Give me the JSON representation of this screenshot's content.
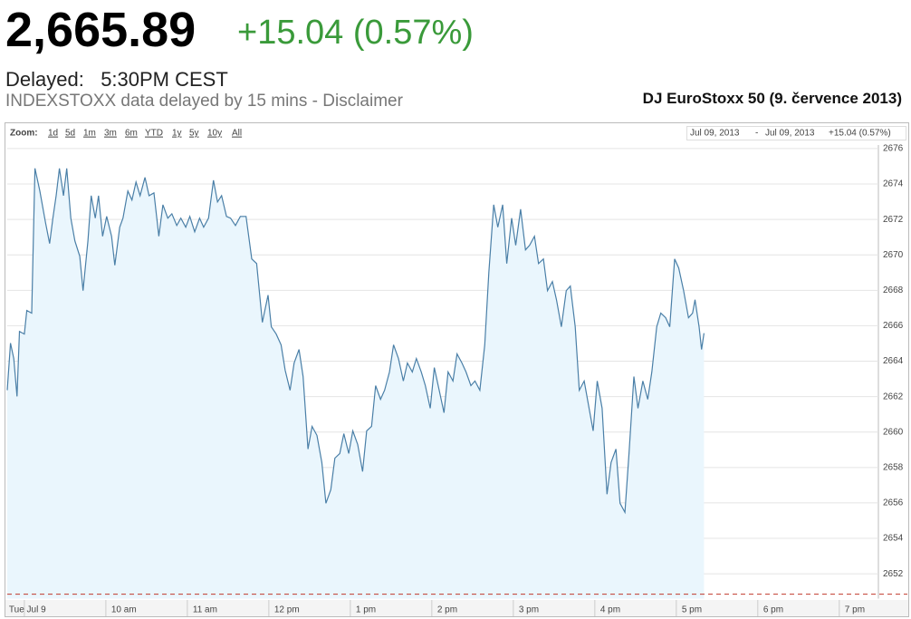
{
  "header": {
    "price": "2,665.89",
    "change": "+15.04 (0.57%)",
    "delayed_label": "Delayed:",
    "delayed_time": "5:30PM CEST",
    "disclaimer": "INDEXSTOXX data delayed by 15 mins - Disclaimer"
  },
  "zoom": {
    "label": "Zoom:",
    "options": [
      "1d",
      "5d",
      "1m",
      "3m",
      "6m",
      "YTD",
      "1y",
      "5y",
      "10y",
      "All"
    ]
  },
  "range": {
    "start": "Jul 09, 2013",
    "separator": "-",
    "end": "Jul 09, 2013",
    "change": "+15.04 (0.57%)"
  },
  "chart_data": {
    "type": "line",
    "title": "DJ EuroStoxx 50 (9. července 2013)",
    "color": "#4a7fa7",
    "fill": "#eaf6fd",
    "grid": true,
    "reference_line": 2650.85,
    "reference_color": "#c0392b",
    "xlim": [
      8.79,
      19.48
    ],
    "ylim": [
      2650.6,
      2676.2
    ],
    "xticks": [
      {
        "value": 9,
        "label": "Tue Jul 9"
      },
      {
        "value": 10,
        "label": "10 am"
      },
      {
        "value": 11,
        "label": "11 am"
      },
      {
        "value": 12,
        "label": "12 pm"
      },
      {
        "value": 13,
        "label": "1 pm"
      },
      {
        "value": 14,
        "label": "2 pm"
      },
      {
        "value": 15,
        "label": "3 pm"
      },
      {
        "value": 16,
        "label": "4 pm"
      },
      {
        "value": 17,
        "label": "5 pm"
      },
      {
        "value": 18,
        "label": "6 pm"
      },
      {
        "value": 19,
        "label": "7 pm"
      }
    ],
    "yticks": [
      2652,
      2654,
      2656,
      2658,
      2660,
      2662,
      2664,
      2666,
      2668,
      2670,
      2672,
      2674,
      2676
    ],
    "x": [
      8.79,
      8.83,
      8.87,
      8.91,
      8.94,
      9.0,
      9.03,
      9.09,
      9.13,
      9.19,
      9.26,
      9.31,
      9.35,
      9.39,
      9.43,
      9.48,
      9.52,
      9.57,
      9.62,
      9.68,
      9.72,
      9.78,
      9.82,
      9.87,
      9.91,
      9.96,
      10.01,
      10.07,
      10.11,
      10.17,
      10.21,
      10.27,
      10.32,
      10.37,
      10.42,
      10.48,
      10.53,
      10.59,
      10.65,
      10.7,
      10.76,
      10.81,
      10.87,
      10.92,
      10.98,
      11.03,
      11.09,
      11.15,
      11.2,
      11.26,
      11.32,
      11.37,
      11.42,
      11.48,
      11.53,
      11.59,
      11.65,
      11.72,
      11.79,
      11.85,
      11.92,
      11.99,
      12.03,
      12.09,
      12.15,
      12.2,
      12.26,
      12.31,
      12.37,
      12.42,
      12.48,
      12.53,
      12.59,
      12.65,
      12.7,
      12.76,
      12.81,
      12.87,
      12.92,
      12.98,
      13.03,
      13.09,
      13.15,
      13.2,
      13.26,
      13.31,
      13.37,
      13.42,
      13.48,
      13.53,
      13.59,
      13.65,
      13.7,
      13.76,
      13.81,
      13.87,
      13.92,
      13.98,
      14.03,
      14.09,
      14.15,
      14.2,
      14.26,
      14.31,
      14.37,
      14.42,
      14.48,
      14.53,
      14.59,
      14.65,
      14.7,
      14.76,
      14.81,
      14.87,
      14.92,
      14.98,
      15.03,
      15.09,
      15.15,
      15.2,
      15.26,
      15.31,
      15.37,
      15.42,
      15.48,
      15.53,
      15.59,
      15.65,
      15.7,
      15.76,
      15.81,
      15.87,
      15.92,
      15.98,
      16.03,
      16.09,
      16.15,
      16.2,
      16.26,
      16.31,
      16.37,
      16.42,
      16.48,
      16.53,
      16.59,
      16.65,
      16.7,
      16.76,
      16.81,
      16.87,
      16.92,
      16.98,
      17.03,
      17.09,
      17.15,
      17.2,
      17.23,
      17.28,
      17.31,
      17.34
    ],
    "values": [
      2662.36,
      2665.02,
      2664.15,
      2662.01,
      2665.68,
      2665.53,
      2666.86,
      2666.71,
      2674.88,
      2673.6,
      2671.81,
      2670.64,
      2672.07,
      2673.34,
      2674.88,
      2673.34,
      2674.88,
      2672.07,
      2670.79,
      2669.92,
      2667.98,
      2670.79,
      2673.34,
      2672.07,
      2673.34,
      2671.05,
      2672.17,
      2671.05,
      2669.41,
      2671.56,
      2672.07,
      2673.6,
      2673.09,
      2674.11,
      2673.34,
      2674.37,
      2673.34,
      2673.5,
      2671.05,
      2672.83,
      2672.07,
      2672.32,
      2671.66,
      2672.07,
      2671.56,
      2672.17,
      2671.3,
      2672.07,
      2671.56,
      2672.07,
      2674.21,
      2672.99,
      2673.34,
      2672.17,
      2672.07,
      2671.66,
      2672.17,
      2672.17,
      2669.77,
      2669.51,
      2666.19,
      2667.73,
      2665.94,
      2665.53,
      2664.92,
      2663.49,
      2662.36,
      2663.9,
      2664.66,
      2663.13,
      2659.04,
      2660.32,
      2659.81,
      2658.28,
      2655.98,
      2656.75,
      2658.53,
      2658.79,
      2659.91,
      2658.79,
      2660.07,
      2659.3,
      2657.77,
      2660.07,
      2660.32,
      2662.62,
      2661.85,
      2662.36,
      2663.39,
      2664.92,
      2664.15,
      2662.88,
      2663.9,
      2663.39,
      2664.15,
      2663.39,
      2662.62,
      2661.34,
      2663.64,
      2662.36,
      2661.09,
      2663.39,
      2662.88,
      2664.41,
      2663.9,
      2663.39,
      2662.62,
      2662.88,
      2662.36,
      2664.92,
      2669.0,
      2672.83,
      2671.56,
      2672.83,
      2669.51,
      2672.07,
      2670.54,
      2672.58,
      2670.28,
      2670.54,
      2671.05,
      2669.51,
      2669.77,
      2667.98,
      2668.49,
      2667.47,
      2665.94,
      2667.98,
      2668.24,
      2665.94,
      2662.36,
      2662.88,
      2661.6,
      2660.07,
      2662.88,
      2661.34,
      2656.49,
      2658.28,
      2659.04,
      2655.98,
      2655.47,
      2658.79,
      2663.13,
      2661.34,
      2662.88,
      2661.85,
      2663.39,
      2665.94,
      2666.71,
      2666.45,
      2665.94,
      2669.77,
      2669.26,
      2667.98,
      2666.45,
      2666.71,
      2667.47,
      2665.94,
      2664.66,
      2665.58
    ]
  }
}
